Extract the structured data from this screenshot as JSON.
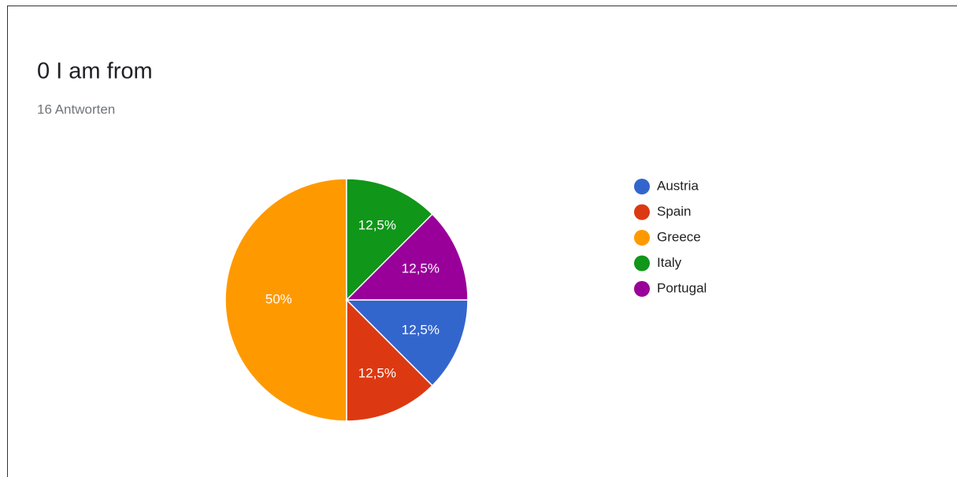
{
  "chart_data": {
    "type": "pie",
    "title": "0 I am from",
    "subtitle": "16 Antworten",
    "categories": [
      "Austria",
      "Spain",
      "Greece",
      "Italy",
      "Portugal"
    ],
    "values": [
      12.5,
      12.5,
      50,
      12.5,
      12.5
    ],
    "value_labels": [
      "12,5%",
      "12,5%",
      "50%",
      "12,5%",
      "12,5%"
    ],
    "colors": [
      "#3366cc",
      "#dc3912",
      "#ff9900",
      "#109618",
      "#990099"
    ],
    "legend": "right"
  }
}
